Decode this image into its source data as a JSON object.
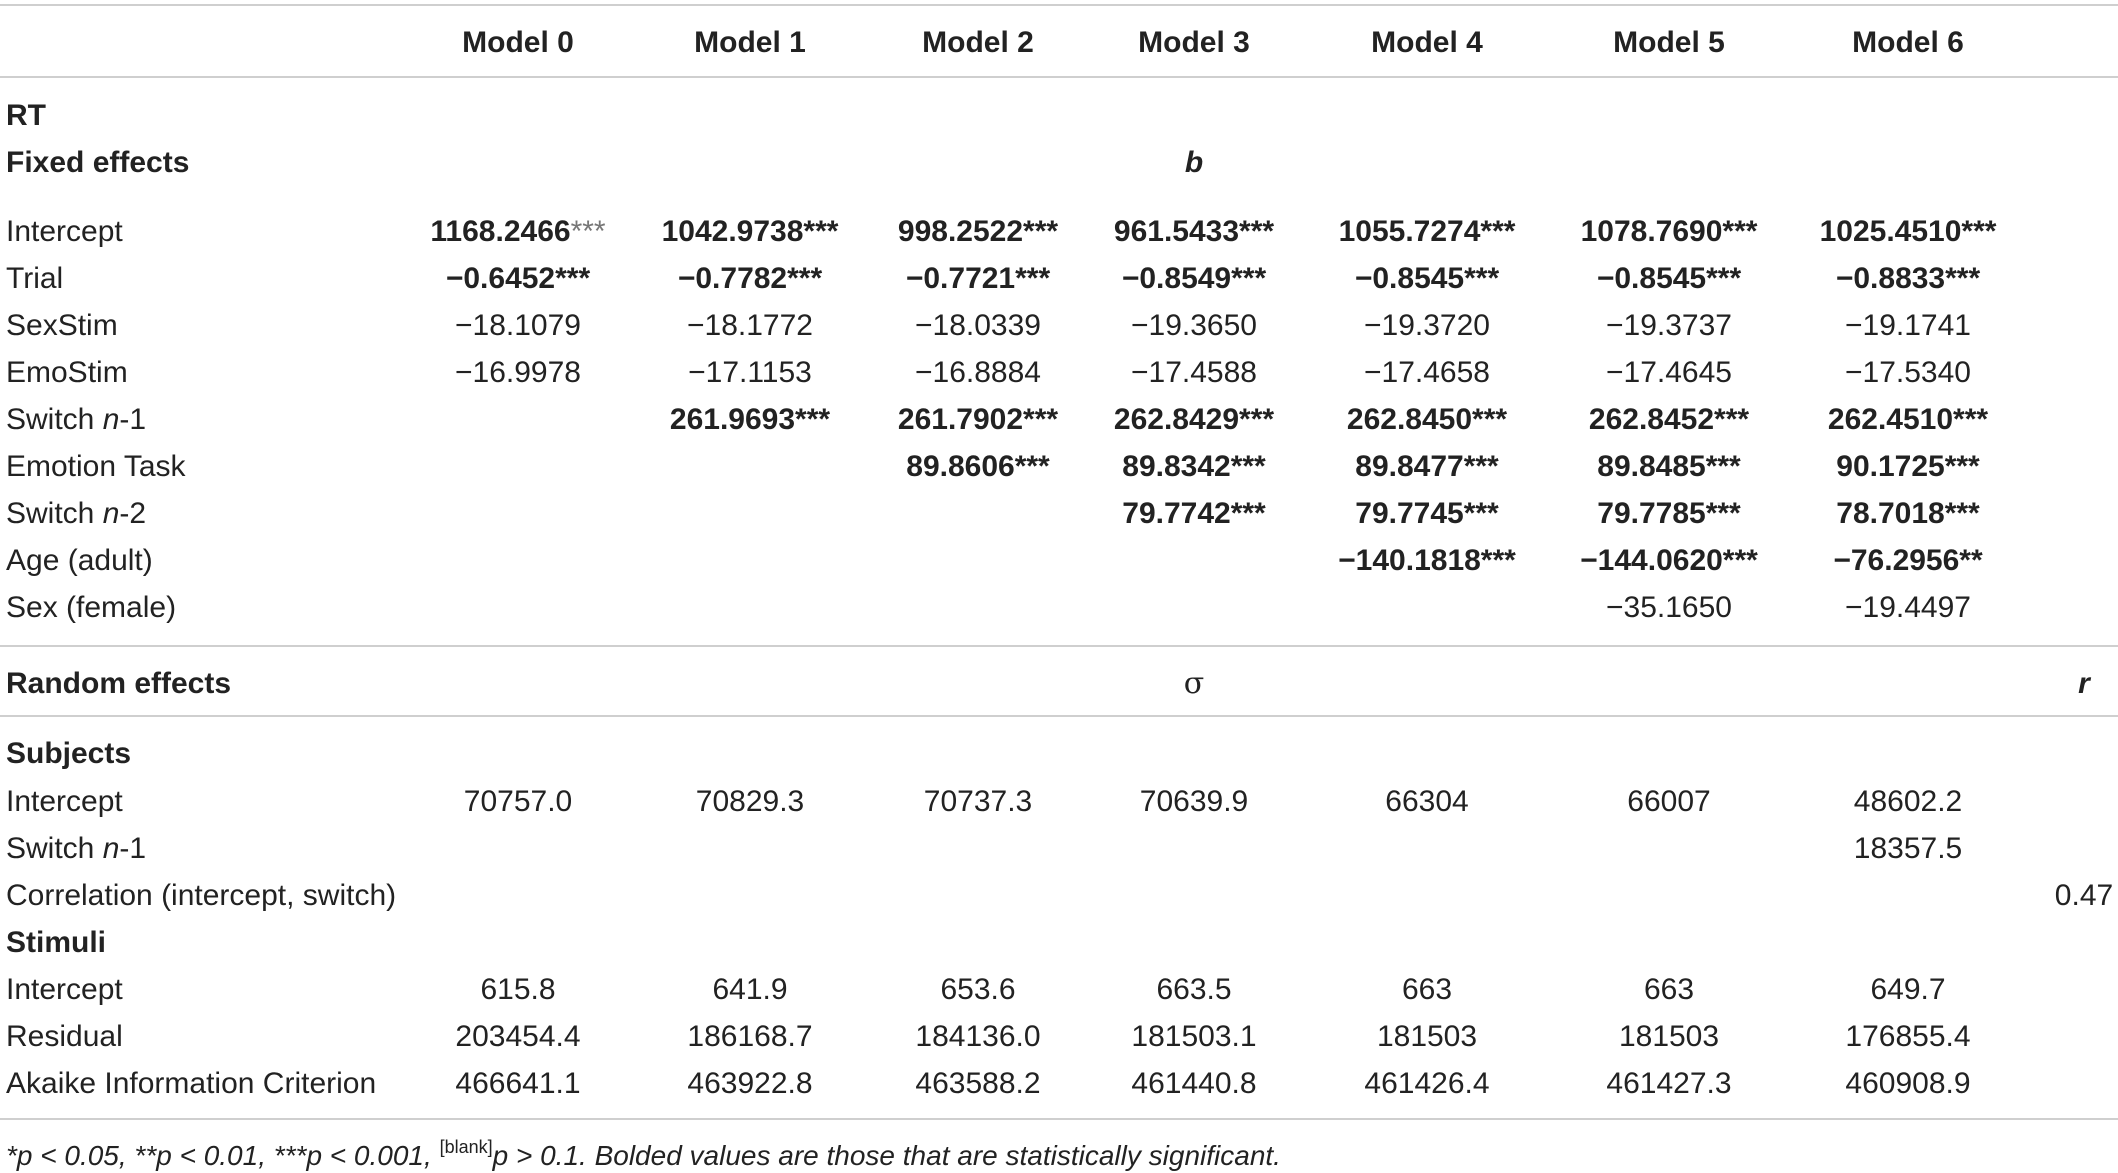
{
  "columns": [
    "Model 0",
    "Model 1",
    "Model 2",
    "Model 3",
    "Model 4",
    "Model 5",
    "Model 6"
  ],
  "section_rt": "RT",
  "fixed_effects": {
    "heading": "Fixed effects",
    "stat": "b",
    "rows": [
      {
        "label": "Intercept",
        "values": [
          {
            "v": "1168.2466",
            "sig": "***",
            "sig_light": true,
            "bold": true
          },
          {
            "v": "1042.9738***",
            "bold": true
          },
          {
            "v": "998.2522***",
            "bold": true
          },
          {
            "v": "961.5433***",
            "bold": true
          },
          {
            "v": "1055.7274***",
            "bold": true
          },
          {
            "v": "1078.7690***",
            "bold": true
          },
          {
            "v": "1025.4510***",
            "bold": true
          }
        ]
      },
      {
        "label": "Trial",
        "values": [
          {
            "v": "−0.6452***",
            "bold": true
          },
          {
            "v": "−0.7782***",
            "bold": true
          },
          {
            "v": "−0.7721***",
            "bold": true
          },
          {
            "v": "−0.8549***",
            "bold": true
          },
          {
            "v": "−0.8545***",
            "bold": true
          },
          {
            "v": "−0.8545***",
            "bold": true
          },
          {
            "v": "−0.8833***",
            "bold": true
          }
        ]
      },
      {
        "label": "SexStim",
        "values": [
          {
            "v": "−18.1079"
          },
          {
            "v": "−18.1772"
          },
          {
            "v": "−18.0339"
          },
          {
            "v": "−19.3650"
          },
          {
            "v": "−19.3720"
          },
          {
            "v": "−19.3737"
          },
          {
            "v": "−19.1741"
          }
        ]
      },
      {
        "label": "EmoStim",
        "values": [
          {
            "v": "−16.9978"
          },
          {
            "v": "−17.1153"
          },
          {
            "v": "−16.8884"
          },
          {
            "v": "−17.4588"
          },
          {
            "v": "−17.4658"
          },
          {
            "v": "−17.4645"
          },
          {
            "v": "−17.5340"
          }
        ]
      },
      {
        "label_pre": "Switch ",
        "label_it": "n",
        "label_post": "-1",
        "values": [
          null,
          {
            "v": "261.9693***",
            "bold": true
          },
          {
            "v": "261.7902***",
            "bold": true
          },
          {
            "v": "262.8429***",
            "bold": true
          },
          {
            "v": "262.8450***",
            "bold": true
          },
          {
            "v": "262.8452***",
            "bold": true
          },
          {
            "v": "262.4510***",
            "bold": true
          }
        ]
      },
      {
        "label": "Emotion Task",
        "values": [
          null,
          null,
          {
            "v": "89.8606***",
            "bold": true
          },
          {
            "v": "89.8342***",
            "bold": true
          },
          {
            "v": "89.8477***",
            "bold": true
          },
          {
            "v": "89.8485***",
            "bold": true
          },
          {
            "v": "90.1725***",
            "bold": true
          }
        ]
      },
      {
        "label_pre": "Switch ",
        "label_it": "n",
        "label_post": "-2",
        "values": [
          null,
          null,
          null,
          {
            "v": "79.7742***",
            "bold": true
          },
          {
            "v": "79.7745***",
            "bold": true
          },
          {
            "v": "79.7785***",
            "bold": true
          },
          {
            "v": "78.7018***",
            "bold": true
          }
        ]
      },
      {
        "label": "Age (adult)",
        "values": [
          null,
          null,
          null,
          null,
          {
            "v": "−140.1818***",
            "bold": true
          },
          {
            "v": "−144.0620***",
            "bold": true
          },
          {
            "v": "−76.2956**",
            "bold": true
          }
        ]
      },
      {
        "label": "Sex (female)",
        "values": [
          null,
          null,
          null,
          null,
          null,
          {
            "v": "−35.1650"
          },
          {
            "v": "−19.4497"
          }
        ]
      }
    ]
  },
  "random_effects": {
    "heading": "Random effects",
    "stat_sigma": "σ",
    "stat_r": "r",
    "subjects_heading": "Subjects",
    "subject_rows": [
      {
        "label": "Intercept",
        "values": [
          "70757.0",
          "70829.3",
          "70737.3",
          "70639.9",
          "66304",
          "66007",
          "48602.2"
        ]
      },
      {
        "label_pre": "Switch ",
        "label_it": "n",
        "label_post": "-1",
        "values": [
          "",
          "",
          "",
          "",
          "",
          "",
          "18357.5"
        ]
      }
    ],
    "correlation": {
      "label": "Correlation (intercept, switch)",
      "value": "0.47"
    },
    "stimuli_heading": "Stimuli",
    "stimuli_rows": [
      {
        "label": "Intercept",
        "values": [
          "615.8",
          "641.9",
          "653.6",
          "663.5",
          "663",
          "663",
          "649.7"
        ]
      },
      {
        "label": "Residual",
        "values": [
          "203454.4",
          "186168.7",
          "184136.0",
          "181503.1",
          "181503",
          "181503",
          "176855.4"
        ]
      },
      {
        "label": "Akaike Information Criterion",
        "values": [
          "466641.1",
          "463922.8",
          "463588.2",
          "461440.8",
          "461426.4",
          "461427.3",
          "460908.9"
        ]
      }
    ]
  },
  "footnote": {
    "part1": "*p < 0.05, **p < 0.01, ***p < 0.001, ",
    "blank_sup": "[blank]",
    "part2": "p > 0.1. Bolded values are those that are statistically significant."
  }
}
